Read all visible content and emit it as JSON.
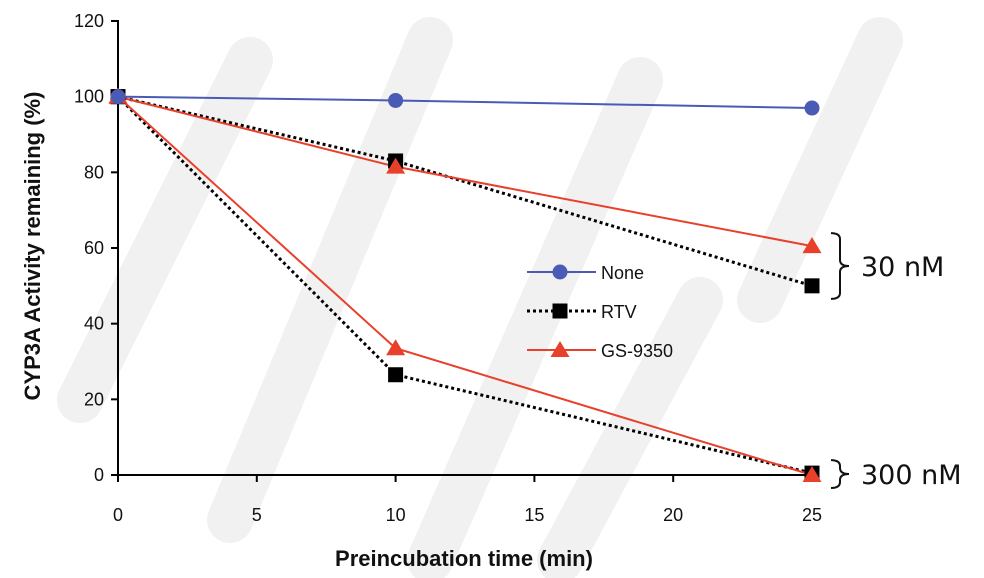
{
  "chart_data": {
    "type": "line",
    "xlabel": "Preincubation time (min)",
    "ylabel": "CYP3A Activity remaining (%)",
    "xlim": [
      0,
      25
    ],
    "ylim": [
      0,
      120
    ],
    "xticks": [
      0,
      5,
      10,
      15,
      20,
      25
    ],
    "yticks": [
      0,
      20,
      40,
      60,
      80,
      100,
      120
    ],
    "grid": false,
    "legend_position": "center-right",
    "x": [
      0,
      10,
      25
    ],
    "series": [
      {
        "name": "None",
        "group": "",
        "color": "#4a5bb5",
        "marker": "circle",
        "line": "solid",
        "values": [
          100,
          99,
          97
        ],
        "in_legend": true
      },
      {
        "name": "RTV",
        "group": "30 nM",
        "color": "#000000",
        "marker": "square",
        "line": "dotted",
        "values": [
          100,
          83,
          50
        ],
        "in_legend": true
      },
      {
        "name": "GS-9350",
        "group": "30 nM",
        "color": "#e8402a",
        "marker": "triangle",
        "line": "solid",
        "values": [
          100,
          81.5,
          60.5
        ],
        "in_legend": true
      },
      {
        "name": "RTV",
        "group": "300 nM",
        "color": "#000000",
        "marker": "square",
        "line": "dotted",
        "values": [
          100,
          26.5,
          0.5
        ],
        "in_legend": false
      },
      {
        "name": "GS-9350",
        "group": "300 nM",
        "color": "#e8402a",
        "marker": "triangle",
        "line": "solid",
        "values": [
          100,
          33.5,
          0
        ],
        "in_legend": false
      }
    ],
    "annotations": [
      {
        "text": "30 nM",
        "series_group": "30 nM"
      },
      {
        "text": "300 nM",
        "series_group": "300 nM"
      }
    ]
  }
}
